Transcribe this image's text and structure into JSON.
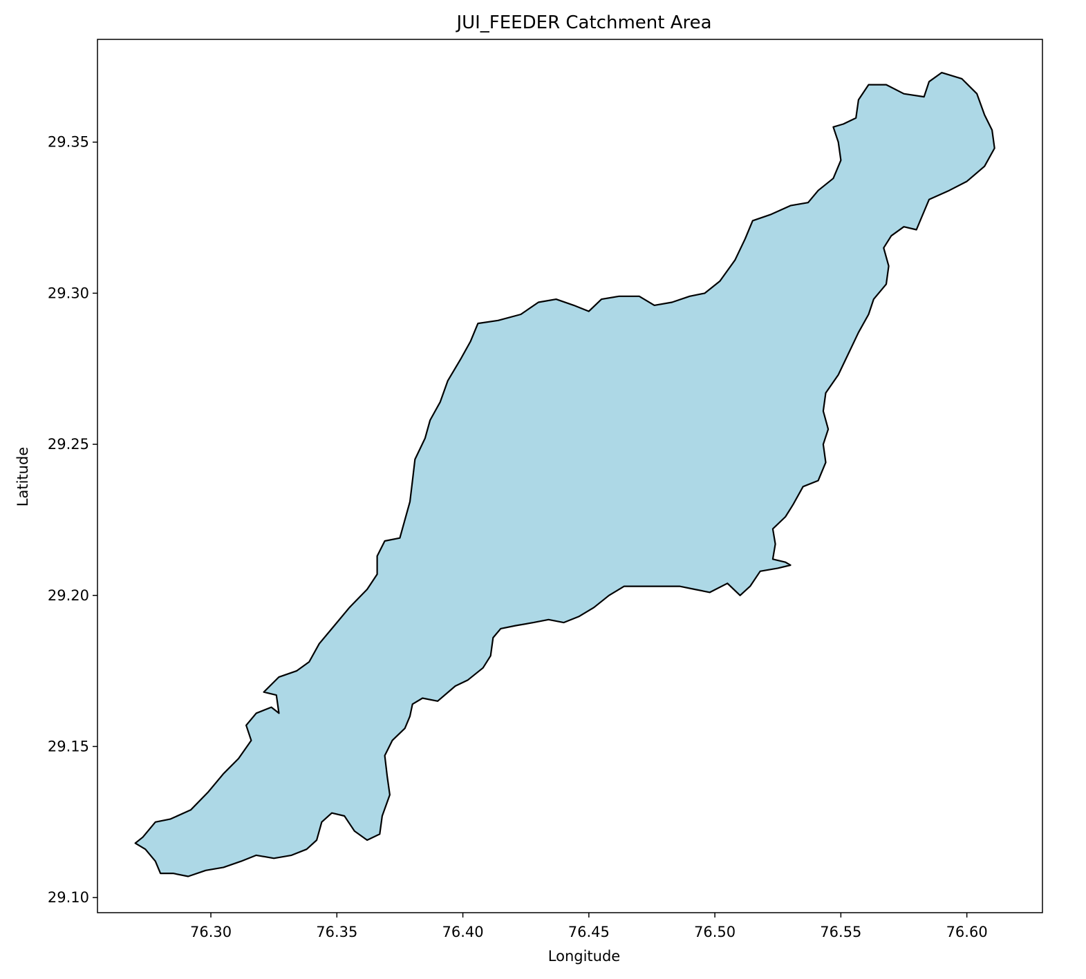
{
  "chart_data": {
    "type": "map",
    "title": "JUI_FEEDER Catchment Area",
    "xlabel": "Longitude",
    "ylabel": "Latitude",
    "xlim": [
      76.255,
      76.63
    ],
    "ylim": [
      29.095,
      29.384
    ],
    "grid": false,
    "legend": "none",
    "fill_color": "#add8e6",
    "edge_color": "#000000",
    "xticks": [
      {
        "value": 76.3,
        "label": "76.30"
      },
      {
        "value": 76.35,
        "label": "76.35"
      },
      {
        "value": 76.4,
        "label": "76.40"
      },
      {
        "value": 76.45,
        "label": "76.45"
      },
      {
        "value": 76.5,
        "label": "76.50"
      },
      {
        "value": 76.55,
        "label": "76.55"
      },
      {
        "value": 76.6,
        "label": "76.60"
      }
    ],
    "yticks": [
      {
        "value": 29.1,
        "label": "29.10"
      },
      {
        "value": 29.15,
        "label": "29.15"
      },
      {
        "value": 29.2,
        "label": "29.20"
      },
      {
        "value": 29.25,
        "label": "29.25"
      },
      {
        "value": 29.3,
        "label": "29.30"
      },
      {
        "value": 29.35,
        "label": "29.35"
      }
    ],
    "polygon": [
      [
        76.273,
        29.12
      ],
      [
        76.278,
        29.125
      ],
      [
        76.284,
        29.126
      ],
      [
        76.292,
        29.129
      ],
      [
        76.299,
        29.135
      ],
      [
        76.305,
        29.141
      ],
      [
        76.311,
        29.146
      ],
      [
        76.316,
        29.152
      ],
      [
        76.314,
        29.157
      ],
      [
        76.318,
        29.161
      ],
      [
        76.324,
        29.163
      ],
      [
        76.327,
        29.161
      ],
      [
        76.326,
        29.167
      ],
      [
        76.321,
        29.168
      ],
      [
        76.327,
        29.173
      ],
      [
        76.334,
        29.175
      ],
      [
        76.339,
        29.178
      ],
      [
        76.343,
        29.184
      ],
      [
        76.349,
        29.19
      ],
      [
        76.355,
        29.196
      ],
      [
        76.362,
        29.202
      ],
      [
        76.366,
        29.207
      ],
      [
        76.366,
        29.213
      ],
      [
        76.369,
        29.218
      ],
      [
        76.375,
        29.219
      ],
      [
        76.377,
        29.225
      ],
      [
        76.379,
        29.231
      ],
      [
        76.38,
        29.238
      ],
      [
        76.381,
        29.245
      ],
      [
        76.385,
        29.252
      ],
      [
        76.387,
        29.258
      ],
      [
        76.391,
        29.264
      ],
      [
        76.394,
        29.271
      ],
      [
        76.399,
        29.278
      ],
      [
        76.403,
        29.284
      ],
      [
        76.406,
        29.29
      ],
      [
        76.414,
        29.291
      ],
      [
        76.423,
        29.293
      ],
      [
        76.43,
        29.297
      ],
      [
        76.437,
        29.298
      ],
      [
        76.444,
        29.296
      ],
      [
        76.45,
        29.294
      ],
      [
        76.455,
        29.298
      ],
      [
        76.462,
        29.299
      ],
      [
        76.47,
        29.299
      ],
      [
        76.476,
        29.296
      ],
      [
        76.483,
        29.297
      ],
      [
        76.49,
        29.299
      ],
      [
        76.496,
        29.3
      ],
      [
        76.502,
        29.304
      ],
      [
        76.508,
        29.311
      ],
      [
        76.512,
        29.318
      ],
      [
        76.515,
        29.324
      ],
      [
        76.522,
        29.326
      ],
      [
        76.53,
        29.329
      ],
      [
        76.537,
        29.33
      ],
      [
        76.541,
        29.334
      ],
      [
        76.547,
        29.338
      ],
      [
        76.55,
        29.344
      ],
      [
        76.549,
        29.35
      ],
      [
        76.547,
        29.355
      ],
      [
        76.551,
        29.356
      ],
      [
        76.556,
        29.358
      ],
      [
        76.557,
        29.364
      ],
      [
        76.561,
        29.369
      ],
      [
        76.568,
        29.369
      ],
      [
        76.575,
        29.366
      ],
      [
        76.583,
        29.365
      ],
      [
        76.585,
        29.37
      ],
      [
        76.59,
        29.373
      ],
      [
        76.598,
        29.371
      ],
      [
        76.604,
        29.366
      ],
      [
        76.607,
        29.359
      ],
      [
        76.61,
        29.354
      ],
      [
        76.611,
        29.348
      ],
      [
        76.607,
        29.342
      ],
      [
        76.6,
        29.337
      ],
      [
        76.593,
        29.334
      ],
      [
        76.585,
        29.331
      ],
      [
        76.582,
        29.325
      ],
      [
        76.58,
        29.321
      ],
      [
        76.575,
        29.322
      ],
      [
        76.57,
        29.319
      ],
      [
        76.567,
        29.315
      ],
      [
        76.569,
        29.309
      ],
      [
        76.568,
        29.303
      ],
      [
        76.563,
        29.298
      ],
      [
        76.561,
        29.293
      ],
      [
        76.557,
        29.287
      ],
      [
        76.553,
        29.28
      ],
      [
        76.549,
        29.273
      ],
      [
        76.544,
        29.267
      ],
      [
        76.543,
        29.261
      ],
      [
        76.545,
        29.255
      ],
      [
        76.543,
        29.25
      ],
      [
        76.544,
        29.244
      ],
      [
        76.541,
        29.238
      ],
      [
        76.535,
        29.236
      ],
      [
        76.531,
        29.23
      ],
      [
        76.528,
        29.226
      ],
      [
        76.523,
        29.222
      ],
      [
        76.524,
        29.217
      ],
      [
        76.523,
        29.212
      ],
      [
        76.528,
        29.211
      ],
      [
        76.53,
        29.21
      ],
      [
        76.525,
        29.209
      ],
      [
        76.518,
        29.208
      ],
      [
        76.514,
        29.203
      ],
      [
        76.51,
        29.2
      ],
      [
        76.505,
        29.204
      ],
      [
        76.498,
        29.201
      ],
      [
        76.492,
        29.202
      ],
      [
        76.486,
        29.203
      ],
      [
        76.478,
        29.203
      ],
      [
        76.471,
        29.203
      ],
      [
        76.464,
        29.203
      ],
      [
        76.458,
        29.2
      ],
      [
        76.452,
        29.196
      ],
      [
        76.446,
        29.193
      ],
      [
        76.44,
        29.191
      ],
      [
        76.434,
        29.192
      ],
      [
        76.428,
        29.191
      ],
      [
        76.421,
        29.19
      ],
      [
        76.415,
        29.189
      ],
      [
        76.412,
        29.186
      ],
      [
        76.411,
        29.18
      ],
      [
        76.408,
        29.176
      ],
      [
        76.402,
        29.172
      ],
      [
        76.397,
        29.17
      ],
      [
        76.39,
        29.165
      ],
      [
        76.384,
        29.166
      ],
      [
        76.38,
        29.164
      ],
      [
        76.379,
        29.16
      ],
      [
        76.377,
        29.156
      ],
      [
        76.372,
        29.152
      ],
      [
        76.369,
        29.147
      ],
      [
        76.37,
        29.14
      ],
      [
        76.371,
        29.134
      ],
      [
        76.368,
        29.127
      ],
      [
        76.367,
        29.121
      ],
      [
        76.362,
        29.119
      ],
      [
        76.357,
        29.122
      ],
      [
        76.353,
        29.127
      ],
      [
        76.348,
        29.128
      ],
      [
        76.344,
        29.125
      ],
      [
        76.342,
        29.119
      ],
      [
        76.338,
        29.116
      ],
      [
        76.332,
        29.114
      ],
      [
        76.325,
        29.113
      ],
      [
        76.318,
        29.114
      ],
      [
        76.312,
        29.112
      ],
      [
        76.305,
        29.11
      ],
      [
        76.298,
        29.109
      ],
      [
        76.291,
        29.107
      ],
      [
        76.285,
        29.108
      ],
      [
        76.28,
        29.108
      ],
      [
        76.278,
        29.112
      ],
      [
        76.274,
        29.116
      ],
      [
        76.27,
        29.118
      ]
    ]
  }
}
